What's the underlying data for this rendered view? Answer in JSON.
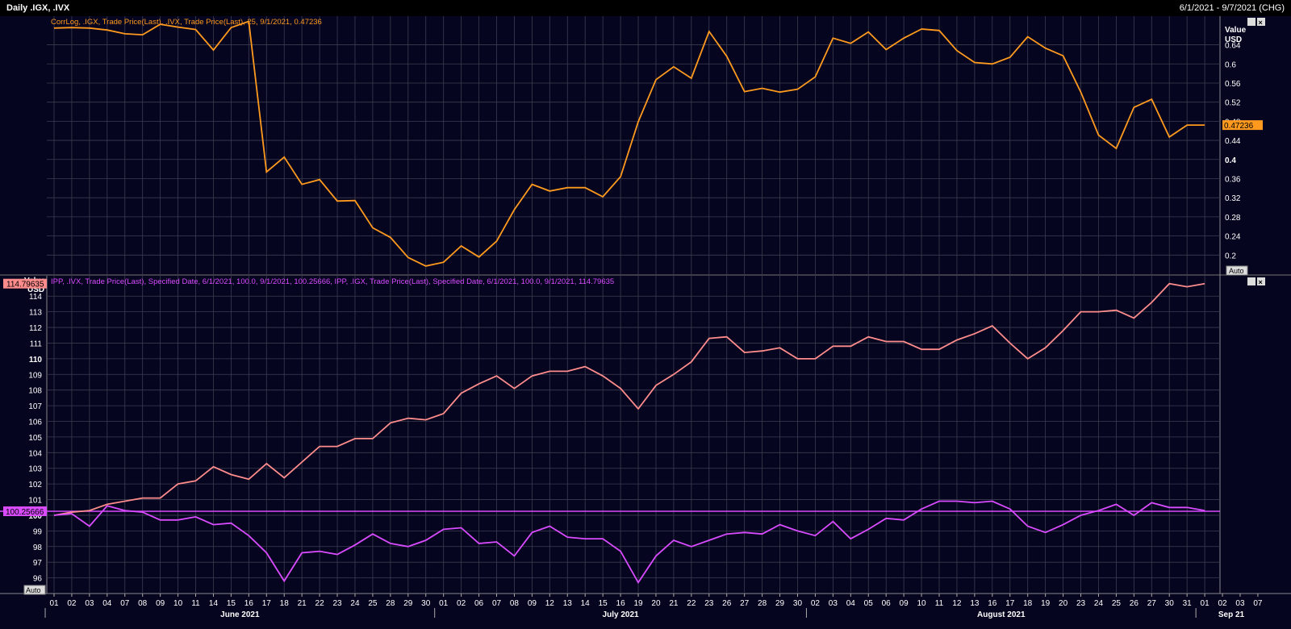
{
  "header": {
    "title": "Daily .IGX, .IVX",
    "date_range": "6/1/2021 - 9/7/2021 (CHG)"
  },
  "panels": {
    "top": {
      "legend": "CorrLog, .IGX, Trade Price(Last), .IVX, Trade Price(Last),  25, 9/1/2021, 0.47236",
      "axis_title_1": "Value",
      "axis_title_2": "USD",
      "last_label": "0.47236",
      "auto_label": "Auto"
    },
    "bottom": {
      "legend": "IPP, .IVX, Trade Price(Last), Specified Date, 6/1/2021, 100.0, 9/1/2021, 100.25666, IPP, .IGX, Trade Price(Last), Specified Date, 6/1/2021, 100.0, 9/1/2021, 114.79635",
      "axis_title_1": "Value",
      "axis_title_2": "USD",
      "last_label_igx": "114.79635",
      "last_label_ivx": "100.25666",
      "auto_label": "Auto"
    }
  },
  "colors": {
    "corr": "#ff9a1f",
    "igx": "#ff8c8c",
    "ivx": "#d94bff",
    "grid": "#3c3c50",
    "bg": "#05051f"
  },
  "x_axis": {
    "days": [
      "01",
      "02",
      "03",
      "04",
      "07",
      "08",
      "09",
      "10",
      "11",
      "14",
      "15",
      "16",
      "17",
      "18",
      "21",
      "22",
      "23",
      "24",
      "25",
      "28",
      "29",
      "30",
      "01",
      "02",
      "06",
      "07",
      "08",
      "09",
      "12",
      "13",
      "14",
      "15",
      "16",
      "19",
      "20",
      "21",
      "22",
      "23",
      "26",
      "27",
      "28",
      "29",
      "30",
      "02",
      "03",
      "04",
      "05",
      "06",
      "09",
      "10",
      "11",
      "12",
      "13",
      "16",
      "17",
      "18",
      "19",
      "20",
      "23",
      "24",
      "25",
      "26",
      "27",
      "30",
      "31",
      "01",
      "02",
      "03",
      "07"
    ],
    "months": [
      {
        "label": "June 2021",
        "start": 0,
        "end": 22
      },
      {
        "label": "July 2021",
        "start": 22,
        "end": 43
      },
      {
        "label": "August 2021",
        "start": 43,
        "end": 65
      },
      {
        "label": "Sep 21",
        "start": 65,
        "end": 69
      }
    ]
  },
  "chart_data": [
    {
      "type": "line",
      "title": "CorrLog, .IGX, Trade Price(Last), .IVX, Trade Price(Last),  25, 9/1/2021, 0.47236",
      "ylabel": "Value USD",
      "ylim": [
        0.16,
        0.7
      ],
      "yticks": [
        "0.2",
        "0.24",
        "0.28",
        "0.32",
        "0.36",
        "0.4",
        "0.44",
        "0.48",
        "0.52",
        "0.56",
        "0.6",
        "0.64"
      ],
      "series": [
        {
          "name": "CorrLog .IGX .IVX 25",
          "values": [
            0.675,
            0.676,
            0.675,
            0.671,
            0.663,
            0.661,
            0.683,
            0.677,
            0.672,
            0.629,
            0.676,
            0.689,
            0.374,
            0.405,
            0.348,
            0.358,
            0.313,
            0.314,
            0.257,
            0.237,
            0.195,
            0.177,
            0.185,
            0.219,
            0.196,
            0.229,
            0.295,
            0.348,
            0.334,
            0.341,
            0.341,
            0.322,
            0.364,
            0.479,
            0.567,
            0.594,
            0.57,
            0.668,
            0.616,
            0.542,
            0.549,
            0.541,
            0.547,
            0.573,
            0.654,
            0.643,
            0.667,
            0.63,
            0.654,
            0.673,
            0.67,
            0.628,
            0.603,
            0.6,
            0.614,
            0.657,
            0.633,
            0.617,
            0.541,
            0.451,
            0.423,
            0.509,
            0.526,
            0.447,
            0.472,
            0.472
          ]
        }
      ]
    },
    {
      "type": "line",
      "title": "IPP, .IVX, Trade Price(Last), Specified Date, 6/1/2021, 100.0, 9/1/2021, 100.25666, IPP, .IGX, Trade Price(Last), Specified Date, 6/1/2021, 100.0, 9/1/2021, 114.79635",
      "ylabel": "Value USD",
      "ylim": [
        95,
        115.3
      ],
      "yticks": [
        "96",
        "97",
        "98",
        "99",
        "100",
        "101",
        "102",
        "103",
        "104",
        "105",
        "106",
        "107",
        "108",
        "109",
        "110",
        "111",
        "112",
        "113",
        "114"
      ],
      "reference_line": 100.25666,
      "series": [
        {
          "name": "IPP .IGX",
          "values": [
            100.0,
            100.2,
            100.3,
            100.7,
            100.9,
            101.1,
            101.1,
            102.0,
            102.2,
            103.1,
            102.6,
            102.3,
            103.3,
            102.4,
            103.4,
            104.4,
            104.4,
            104.9,
            104.9,
            105.9,
            106.2,
            106.1,
            106.5,
            107.8,
            108.4,
            108.9,
            108.1,
            108.9,
            109.2,
            109.2,
            109.5,
            108.9,
            108.1,
            106.8,
            108.3,
            109.0,
            109.8,
            111.3,
            111.4,
            110.4,
            110.5,
            110.7,
            110.0,
            110.0,
            110.8,
            110.8,
            111.4,
            111.1,
            111.1,
            110.6,
            110.6,
            111.2,
            111.6,
            112.1,
            111.0,
            110.0,
            110.7,
            111.8,
            113.0,
            113.0,
            113.1,
            112.6,
            113.6,
            114.8,
            114.6,
            114.8
          ]
        },
        {
          "name": "IPP .IVX",
          "values": [
            100.0,
            100.1,
            99.3,
            100.6,
            100.3,
            100.2,
            99.7,
            99.7,
            99.9,
            99.4,
            99.5,
            98.7,
            97.6,
            95.8,
            97.6,
            97.7,
            97.5,
            98.1,
            98.8,
            98.2,
            98.0,
            98.4,
            99.1,
            99.2,
            98.2,
            98.3,
            97.4,
            98.9,
            99.3,
            98.6,
            98.5,
            98.5,
            97.7,
            95.7,
            97.4,
            98.4,
            98.0,
            98.4,
            98.8,
            98.9,
            98.8,
            99.4,
            99.0,
            98.7,
            99.6,
            98.5,
            99.1,
            99.8,
            99.7,
            100.4,
            100.9,
            100.9,
            100.8,
            100.9,
            100.4,
            99.3,
            98.9,
            99.4,
            100.0,
            100.3,
            100.7,
            100.0,
            100.8,
            100.5,
            100.5,
            100.3
          ]
        }
      ]
    }
  ]
}
